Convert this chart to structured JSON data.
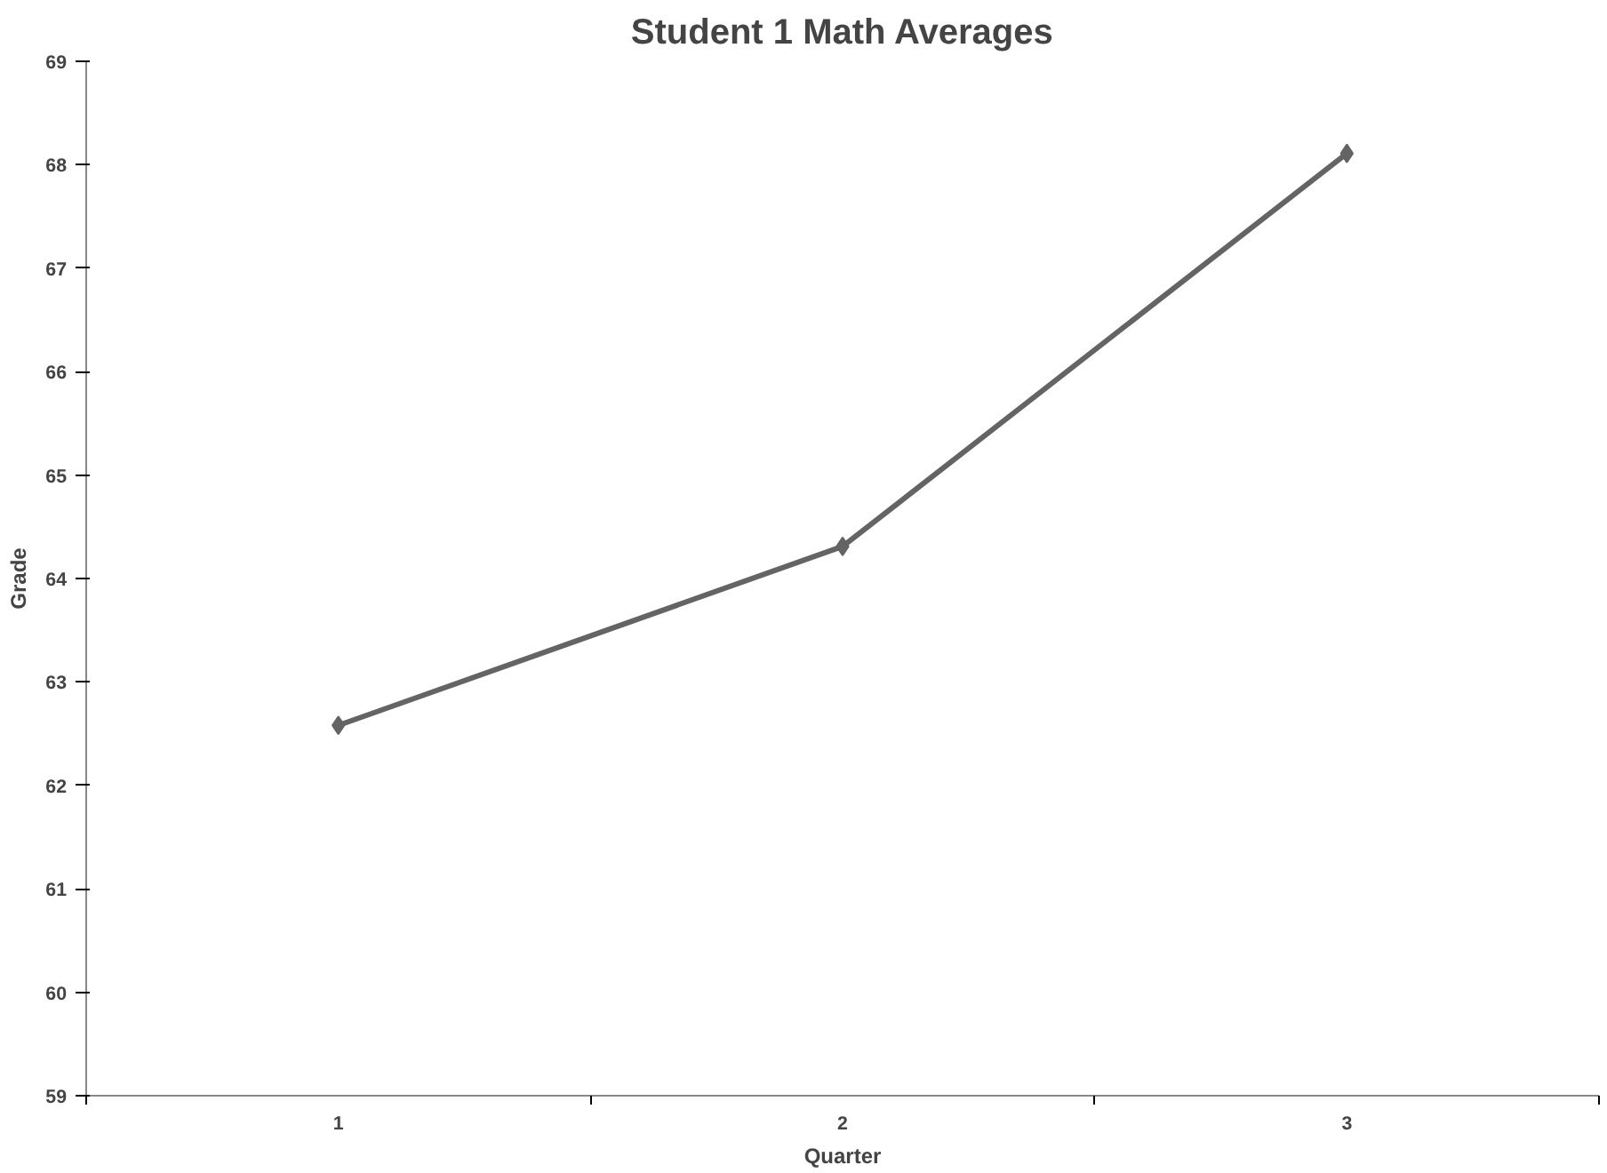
{
  "chart_data": {
    "type": "line",
    "title": "Student 1 Math Averages",
    "xlabel": "Quarter",
    "ylabel": "Grade",
    "categories": [
      "1",
      "2",
      "3"
    ],
    "series": [
      {
        "color": "#646464",
        "values": [
          62.58,
          64.31,
          68.11
        ]
      }
    ],
    "ylim": [
      59,
      69
    ],
    "yticks": [
      59,
      60,
      61,
      62,
      63,
      64,
      65,
      66,
      67,
      68,
      69
    ],
    "grid": false,
    "marker": "diamond",
    "line_style": "solid"
  }
}
